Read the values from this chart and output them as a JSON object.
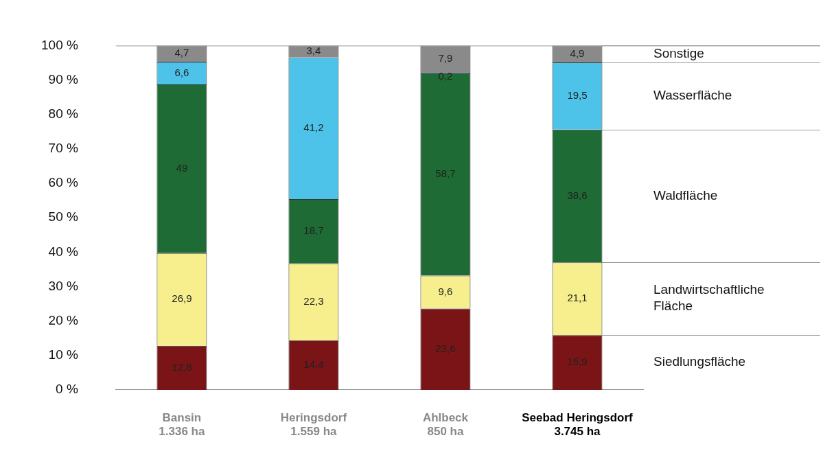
{
  "chart_data": {
    "type": "bar",
    "stacked": true,
    "categories": [
      "Bansin\n1.336 ha",
      "Heringsdorf\n1.559 ha",
      "Ahlbeck\n850 ha",
      "Seebad Heringsdorf\n3.745 ha"
    ],
    "series": [
      {
        "name": "Siedlungsfläche",
        "color": "#7b1416",
        "values": [
          12.8,
          14.4,
          23.6,
          15.9
        ],
        "value_labels": [
          "12,8",
          "14,4",
          "23,6",
          "15,9"
        ]
      },
      {
        "name": "Landwirtschaftliche\nFläche",
        "color": "#f7ef8e",
        "values": [
          26.9,
          22.3,
          9.6,
          21.1
        ],
        "value_labels": [
          "26,9",
          "22,3",
          "9,6",
          "21,1"
        ]
      },
      {
        "name": "Waldfläche",
        "color": "#1e6b35",
        "values": [
          49,
          18.7,
          58.7,
          38.6
        ],
        "value_labels": [
          "49",
          "18,7",
          "58,7",
          "38,6"
        ]
      },
      {
        "name": "Wasserfläche",
        "color": "#4dc3ea",
        "values": [
          6.6,
          41.2,
          0.2,
          19.5
        ],
        "value_labels": [
          "6,6",
          "41,2",
          "0,2",
          "19,5"
        ]
      },
      {
        "name": "Sonstige",
        "color": "#8a8a8a",
        "values": [
          4.7,
          3.4,
          7.9,
          4.9
        ],
        "value_labels": [
          "4,7",
          "3,4",
          "7,9",
          "4,9"
        ]
      }
    ],
    "ylim": [
      0,
      100
    ],
    "yticks": [
      {
        "value": 0,
        "label": "0 %"
      },
      {
        "value": 10,
        "label": "10 %"
      },
      {
        "value": 20,
        "label": "20 %"
      },
      {
        "value": 30,
        "label": "30 %"
      },
      {
        "value": 40,
        "label": "40 %"
      },
      {
        "value": 50,
        "label": "50 %"
      },
      {
        "value": 60,
        "label": "60 %"
      },
      {
        "value": 70,
        "label": "70 %"
      },
      {
        "value": 80,
        "label": "80 %"
      },
      {
        "value": 90,
        "label": "90 %"
      },
      {
        "value": 100,
        "label": "100 %"
      }
    ],
    "grid": false,
    "legend": false
  }
}
